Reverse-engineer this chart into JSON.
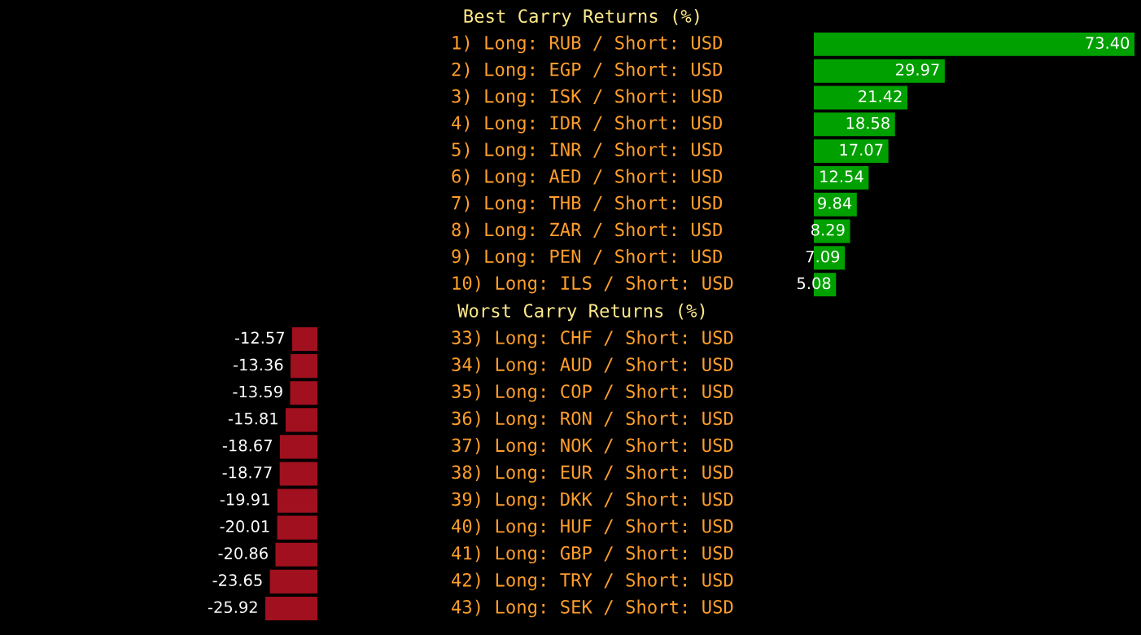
{
  "chart_data": [
    {
      "type": "bar",
      "orientation": "horizontal",
      "title": "Best Carry Returns (%)",
      "categories": [
        "1) Long: RUB / Short: USD",
        "2) Long: EGP / Short: USD",
        "3) Long: ISK / Short: USD",
        "4) Long: IDR / Short: USD",
        "5) Long: INR / Short: USD",
        "6) Long: AED / Short: USD",
        "7) Long: THB / Short: USD",
        "8) Long: ZAR / Short: USD",
        "9) Long: PEN / Short: USD",
        "10) Long: ILS / Short: USD"
      ],
      "values": [
        73.4,
        29.97,
        21.42,
        18.58,
        17.07,
        12.54,
        9.84,
        8.29,
        7.09,
        5.08
      ],
      "value_labels": [
        "73.40",
        "29.97",
        "21.42",
        "18.58",
        "17.07",
        "12.54",
        "9.84",
        "8.29",
        "7.09",
        "5.08"
      ],
      "color": "#00a000"
    },
    {
      "type": "bar",
      "orientation": "horizontal",
      "title": "Worst Carry Returns (%)",
      "categories": [
        "33) Long: CHF / Short: USD",
        "34) Long: AUD / Short: USD",
        "35) Long: COP / Short: USD",
        "36) Long: RON / Short: USD",
        "37) Long: NOK / Short: USD",
        "38) Long: EUR / Short: USD",
        "39) Long: DKK / Short: USD",
        "40) Long: HUF / Short: USD",
        "41) Long: GBP / Short: USD",
        "42) Long: TRY / Short: USD",
        "43) Long: SEK / Short: USD"
      ],
      "values": [
        -12.57,
        -13.36,
        -13.59,
        -15.81,
        -18.67,
        -18.77,
        -19.91,
        -20.01,
        -20.86,
        -23.65,
        -25.92
      ],
      "value_labels": [
        "-12.57",
        "-13.36",
        "-13.59",
        "-15.81",
        "-18.67",
        "-18.77",
        "-19.91",
        "-20.01",
        "-20.86",
        "-23.65",
        "-25.92"
      ],
      "color": "#a0101e"
    }
  ]
}
